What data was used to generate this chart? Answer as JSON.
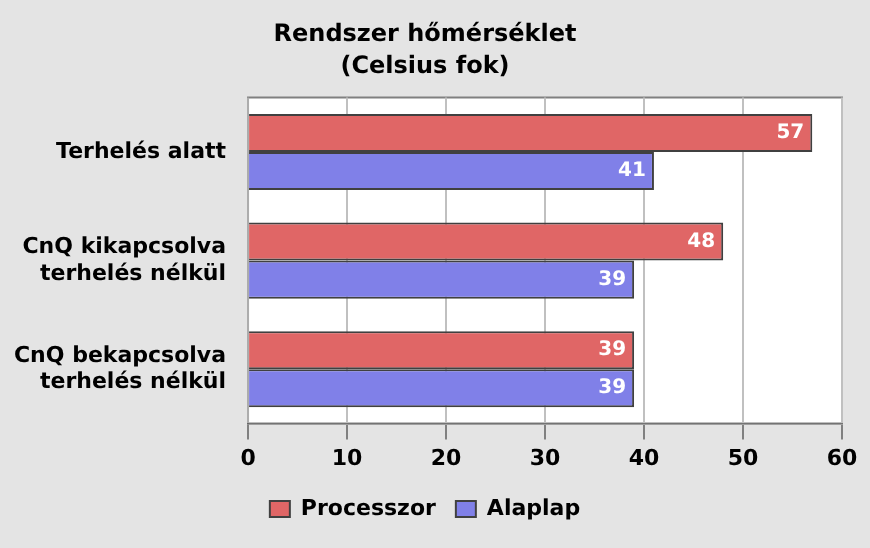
{
  "chart_data": {
    "type": "bar",
    "orientation": "horizontal",
    "title": "Rendszer hőmérséklet",
    "subtitle": "(Celsius fok)",
    "categories": [
      "Terhelés alatt",
      "CnQ kikapcsolva terhelés nélkül",
      "CnQ bekapcsolva terhelés nélkül"
    ],
    "series": [
      {
        "name": "Processzor",
        "color": "#e06666",
        "values": [
          57,
          48,
          39
        ]
      },
      {
        "name": "Alaplap",
        "color": "#8080e8",
        "values": [
          41,
          39,
          39
        ]
      }
    ],
    "xlim": [
      0,
      60
    ],
    "xticks": [
      0,
      10,
      20,
      30,
      40,
      50,
      60
    ],
    "grid": "x",
    "legend": "bottom",
    "data_labels": true
  }
}
